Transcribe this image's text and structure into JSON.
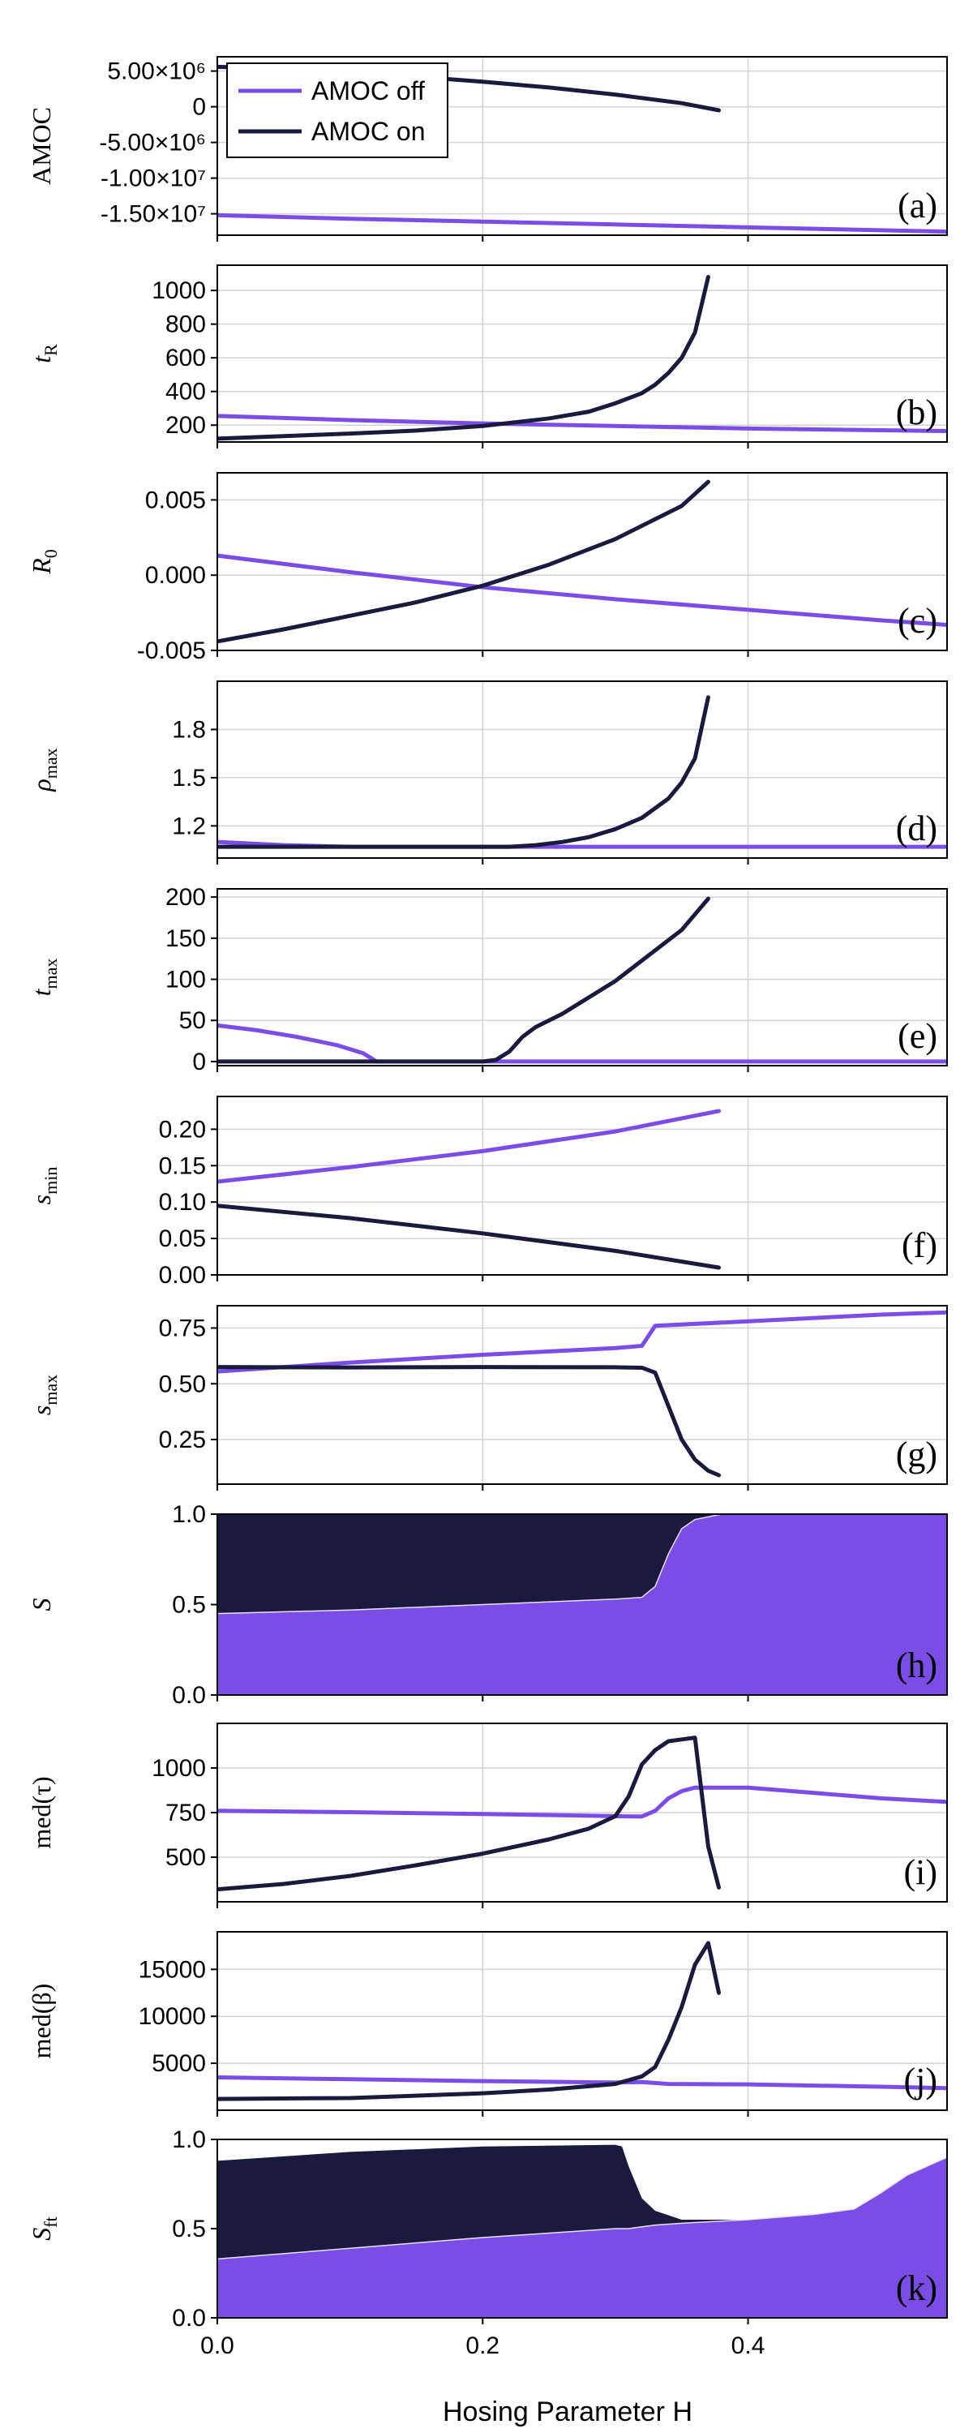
{
  "figure": {
    "xlabel": "Hosing Parameter H",
    "xlim": [
      0,
      0.55
    ],
    "xticks": [
      0.0,
      0.2,
      0.4
    ],
    "xtick_labels": [
      "0.0",
      "0.2",
      "0.4"
    ],
    "legend": {
      "placement": "top-left of panel (a)",
      "entries": [
        {
          "name": "AMOC off",
          "color": "#7b4de6"
        },
        {
          "name": "AMOC on",
          "color": "#1a1a3f"
        }
      ]
    }
  },
  "colors": {
    "off": "#7b4de6",
    "on": "#1a1a3f",
    "grid": "#d2d2d2"
  },
  "chart_data": [
    {
      "id": "a",
      "type": "line",
      "panel_label": "(a)",
      "ylabel": "AMOC",
      "ylim": [
        -18000000,
        7000000
      ],
      "yticks": [
        5000000,
        0,
        -5000000,
        -10000000,
        -15000000
      ],
      "ytick_labels": [
        "5.00×10⁶",
        "0",
        "-5.00×10⁶",
        "-1.00×10⁷",
        "-1.50×10⁷"
      ],
      "series": [
        {
          "name": "AMOC off",
          "key": "off",
          "x": [
            0,
            0.1,
            0.2,
            0.3,
            0.4,
            0.5,
            0.55
          ],
          "y": [
            -15200000,
            -15700000,
            -16100000,
            -16500000,
            -16900000,
            -17300000,
            -17500000
          ]
        },
        {
          "name": "AMOC on",
          "key": "on",
          "x": [
            0,
            0.05,
            0.1,
            0.15,
            0.2,
            0.25,
            0.3,
            0.35,
            0.378
          ],
          "y": [
            5600000,
            5300000,
            4800000,
            4200000,
            3500000,
            2700000,
            1700000,
            500000,
            -500000
          ]
        }
      ]
    },
    {
      "id": "b",
      "type": "line",
      "panel_label": "(b)",
      "ylabel": "t_R",
      "ylim": [
        100,
        1150
      ],
      "yticks": [
        200,
        400,
        600,
        800,
        1000
      ],
      "ytick_labels": [
        "200",
        "400",
        "600",
        "800",
        "1000"
      ],
      "series": [
        {
          "name": "AMOC off",
          "key": "off",
          "x": [
            0,
            0.1,
            0.2,
            0.3,
            0.4,
            0.5,
            0.55
          ],
          "y": [
            255,
            230,
            210,
            195,
            180,
            170,
            165
          ]
        },
        {
          "name": "AMOC on",
          "key": "on",
          "x": [
            0,
            0.05,
            0.1,
            0.15,
            0.2,
            0.25,
            0.28,
            0.3,
            0.32,
            0.33,
            0.34,
            0.35,
            0.36,
            0.37
          ],
          "y": [
            120,
            135,
            150,
            168,
            195,
            240,
            280,
            330,
            390,
            440,
            510,
            600,
            750,
            1080
          ]
        }
      ]
    },
    {
      "id": "c",
      "type": "line",
      "panel_label": "(c)",
      "ylabel": "R_0",
      "ylim": [
        -0.005,
        0.0068
      ],
      "yticks": [
        0.005,
        0.0,
        -0.005
      ],
      "ytick_labels": [
        "0.005",
        "0.000",
        "-0.005"
      ],
      "series": [
        {
          "name": "AMOC off",
          "key": "off",
          "x": [
            0,
            0.1,
            0.2,
            0.3,
            0.4,
            0.5,
            0.55
          ],
          "y": [
            0.0013,
            0.0002,
            -0.0008,
            -0.0016,
            -0.0023,
            -0.003,
            -0.0033
          ]
        },
        {
          "name": "AMOC on",
          "key": "on",
          "x": [
            0,
            0.05,
            0.1,
            0.15,
            0.2,
            0.25,
            0.3,
            0.35,
            0.37
          ],
          "y": [
            -0.0044,
            -0.0036,
            -0.0027,
            -0.0018,
            -0.0007,
            0.0007,
            0.0024,
            0.0046,
            0.0062
          ]
        }
      ]
    },
    {
      "id": "d",
      "type": "line",
      "panel_label": "(d)",
      "ylabel": "ρ_max",
      "ylim": [
        1.0,
        2.1
      ],
      "yticks": [
        1.2,
        1.5,
        1.8
      ],
      "ytick_labels": [
        "1.2",
        "1.5",
        "1.8"
      ],
      "series": [
        {
          "name": "AMOC off",
          "key": "off",
          "x": [
            0,
            0.05,
            0.1,
            0.2,
            0.3,
            0.4,
            0.5,
            0.55
          ],
          "y": [
            1.1,
            1.08,
            1.07,
            1.07,
            1.07,
            1.07,
            1.07,
            1.07
          ]
        },
        {
          "name": "AMOC on",
          "key": "on",
          "x": [
            0,
            0.1,
            0.2,
            0.22,
            0.24,
            0.26,
            0.28,
            0.3,
            0.32,
            0.34,
            0.35,
            0.36,
            0.37
          ],
          "y": [
            1.07,
            1.07,
            1.07,
            1.07,
            1.08,
            1.1,
            1.13,
            1.18,
            1.25,
            1.37,
            1.47,
            1.62,
            2.0
          ]
        }
      ]
    },
    {
      "id": "e",
      "type": "line",
      "panel_label": "(e)",
      "ylabel": "t_max",
      "ylim": [
        -5,
        210
      ],
      "yticks": [
        0,
        50,
        100,
        150,
        200
      ],
      "ytick_labels": [
        "0",
        "50",
        "100",
        "150",
        "200"
      ],
      "series": [
        {
          "name": "AMOC off",
          "key": "off",
          "x": [
            0,
            0.03,
            0.06,
            0.09,
            0.11,
            0.12,
            0.2,
            0.3,
            0.4,
            0.5,
            0.55
          ],
          "y": [
            44,
            38,
            30,
            20,
            10,
            0,
            0,
            0,
            0,
            0,
            0
          ]
        },
        {
          "name": "AMOC on",
          "key": "on",
          "x": [
            0,
            0.1,
            0.2,
            0.21,
            0.22,
            0.23,
            0.24,
            0.26,
            0.3,
            0.35,
            0.37
          ],
          "y": [
            0,
            0,
            0,
            2,
            12,
            30,
            42,
            58,
            98,
            160,
            198
          ]
        }
      ]
    },
    {
      "id": "f",
      "type": "line",
      "panel_label": "(f)",
      "ylabel": "s_min",
      "ylim": [
        0,
        0.245
      ],
      "yticks": [
        0.0,
        0.05,
        0.1,
        0.15,
        0.2
      ],
      "ytick_labels": [
        "0.00",
        "0.05",
        "0.10",
        "0.15",
        "0.20"
      ],
      "series": [
        {
          "name": "AMOC off",
          "key": "off",
          "x": [
            0,
            0.1,
            0.2,
            0.3,
            0.378
          ],
          "y": [
            0.128,
            0.148,
            0.17,
            0.197,
            0.225
          ]
        },
        {
          "name": "AMOC on",
          "key": "on",
          "x": [
            0,
            0.1,
            0.2,
            0.3,
            0.378
          ],
          "y": [
            0.095,
            0.078,
            0.057,
            0.033,
            0.01
          ]
        }
      ]
    },
    {
      "id": "g",
      "type": "line",
      "panel_label": "(g)",
      "ylabel": "s_max",
      "ylim": [
        0.05,
        0.85
      ],
      "yticks": [
        0.25,
        0.5,
        0.75
      ],
      "ytick_labels": [
        "0.25",
        "0.50",
        "0.75"
      ],
      "series": [
        {
          "name": "AMOC off",
          "key": "off",
          "x": [
            0,
            0.1,
            0.2,
            0.3,
            0.32,
            0.33,
            0.4,
            0.5,
            0.55
          ],
          "y": [
            0.555,
            0.595,
            0.63,
            0.66,
            0.67,
            0.76,
            0.78,
            0.81,
            0.82
          ]
        },
        {
          "name": "AMOC on",
          "key": "on",
          "x": [
            0,
            0.1,
            0.2,
            0.3,
            0.32,
            0.33,
            0.34,
            0.35,
            0.36,
            0.37,
            0.378
          ],
          "y": [
            0.575,
            0.573,
            0.575,
            0.574,
            0.572,
            0.55,
            0.4,
            0.25,
            0.16,
            0.11,
            0.09
          ]
        }
      ]
    },
    {
      "id": "h",
      "type": "area",
      "panel_label": "(h)",
      "ylabel": "S",
      "ylim": [
        0,
        1
      ],
      "yticks": [
        0.0,
        0.5,
        1.0
      ],
      "ytick_labels": [
        "0.0",
        "0.5",
        "1.0"
      ],
      "x": [
        0,
        0.1,
        0.2,
        0.3,
        0.32,
        0.33,
        0.34,
        0.35,
        0.36,
        0.38,
        0.4,
        0.55
      ],
      "boundary": [
        0.45,
        0.47,
        0.5,
        0.53,
        0.54,
        0.6,
        0.78,
        0.92,
        0.97,
        1.0,
        1.0,
        1.0
      ]
    },
    {
      "id": "i",
      "type": "line",
      "panel_label": "(i)",
      "ylabel": "med(τ)",
      "ylim": [
        250,
        1250
      ],
      "yticks": [
        500,
        750,
        1000
      ],
      "ytick_labels": [
        "500",
        "750",
        "1000"
      ],
      "series": [
        {
          "name": "AMOC off",
          "key": "off",
          "x": [
            0,
            0.1,
            0.2,
            0.3,
            0.32,
            0.33,
            0.34,
            0.35,
            0.36,
            0.4,
            0.45,
            0.5,
            0.55
          ],
          "y": [
            760,
            752,
            742,
            730,
            728,
            760,
            830,
            870,
            890,
            890,
            860,
            830,
            810
          ]
        },
        {
          "name": "AMOC on",
          "key": "on",
          "x": [
            0,
            0.05,
            0.1,
            0.15,
            0.2,
            0.25,
            0.28,
            0.3,
            0.31,
            0.32,
            0.33,
            0.34,
            0.35,
            0.36,
            0.37,
            0.378
          ],
          "y": [
            320,
            350,
            395,
            455,
            520,
            600,
            660,
            730,
            840,
            1020,
            1100,
            1150,
            1160,
            1170,
            560,
            330
          ]
        }
      ]
    },
    {
      "id": "j",
      "type": "line",
      "panel_label": "(j)",
      "ylabel": "med(β)",
      "ylim": [
        0,
        19000
      ],
      "yticks": [
        5000,
        10000,
        15000
      ],
      "ytick_labels": [
        "5000",
        "10000",
        "15000"
      ],
      "series": [
        {
          "name": "AMOC off",
          "key": "off",
          "x": [
            0,
            0.1,
            0.2,
            0.3,
            0.32,
            0.34,
            0.4,
            0.5,
            0.55
          ],
          "y": [
            3500,
            3300,
            3100,
            2950,
            3000,
            2800,
            2750,
            2500,
            2350
          ]
        },
        {
          "name": "AMOC on",
          "key": "on",
          "x": [
            0,
            0.1,
            0.2,
            0.25,
            0.3,
            0.32,
            0.33,
            0.34,
            0.35,
            0.36,
            0.37,
            0.378
          ],
          "y": [
            1200,
            1300,
            1800,
            2200,
            2800,
            3600,
            4600,
            7500,
            11000,
            15500,
            17800,
            12500
          ]
        }
      ]
    },
    {
      "id": "k",
      "type": "area",
      "panel_label": "(k)",
      "ylabel": "S_ft",
      "ylim": [
        0,
        1
      ],
      "yticks": [
        0.0,
        0.5,
        1.0
      ],
      "ytick_labels": [
        "0.0",
        "0.5",
        "1.0"
      ],
      "x": [
        0,
        0.1,
        0.2,
        0.3,
        0.305,
        0.31,
        0.32,
        0.33,
        0.35,
        0.4,
        0.45,
        0.48,
        0.5,
        0.52,
        0.55
      ],
      "top": [
        0.88,
        0.93,
        0.96,
        0.97,
        0.96,
        0.85,
        0.67,
        0.6,
        0.55,
        0.55,
        0.58,
        0.61,
        0.7,
        0.8,
        0.9
      ],
      "boundary": [
        0.33,
        0.39,
        0.45,
        0.5,
        0.5,
        0.5,
        0.51,
        0.52,
        0.53,
        0.55,
        0.58,
        0.61,
        0.7,
        0.8,
        0.9
      ]
    }
  ]
}
